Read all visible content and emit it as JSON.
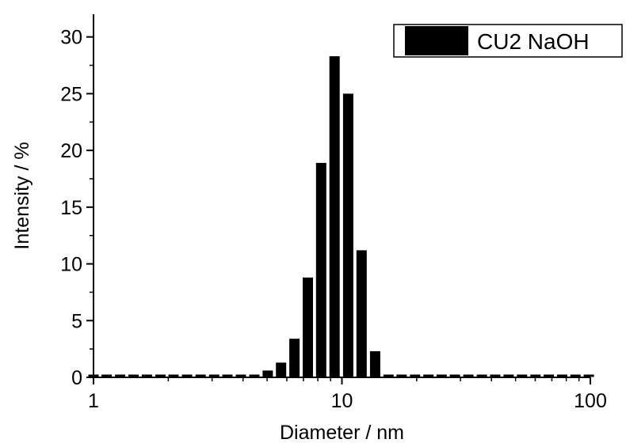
{
  "chart_data": {
    "type": "bar",
    "title": "",
    "xlabel": "Diameter / nm",
    "ylabel": "Intensity / %",
    "x_scale": "log",
    "xlim": [
      1,
      100
    ],
    "ylim": [
      0,
      32
    ],
    "x_ticks": [
      1,
      10,
      100
    ],
    "x_tick_labels": [
      "1",
      "10",
      "100"
    ],
    "y_ticks": [
      0,
      5,
      10,
      15,
      20,
      25,
      30
    ],
    "y_tick_labels": [
      "0",
      "5",
      "10",
      "15",
      "20",
      "25",
      "30"
    ],
    "grid": false,
    "legend_position": "top-right",
    "colors": {
      "bars": "#000000",
      "axes": "#000000",
      "background": "#ffffff"
    },
    "series": [
      {
        "name": "CU2 NaOH",
        "x": [
          1.0,
          1.13,
          1.28,
          1.45,
          1.64,
          1.86,
          2.1,
          2.38,
          2.7,
          3.06,
          3.46,
          3.92,
          4.44,
          5.03,
          5.69,
          6.44,
          7.29,
          8.25,
          9.34,
          10.6,
          12.0,
          13.6,
          15.4,
          17.4,
          19.7,
          22.3,
          25.2,
          28.5,
          32.3,
          36.6,
          41.4,
          46.9,
          53.1,
          60.1,
          68.0,
          77.0,
          87.1,
          98.6
        ],
        "values": [
          0,
          0,
          0,
          0,
          0,
          0,
          0,
          0,
          0,
          0,
          0,
          0,
          0,
          0.6,
          1.3,
          3.4,
          8.8,
          18.9,
          28.3,
          25.0,
          11.2,
          2.3,
          0,
          0,
          0,
          0,
          0,
          0,
          0,
          0,
          0,
          0,
          0,
          0,
          0,
          0,
          0,
          0
        ]
      }
    ]
  }
}
